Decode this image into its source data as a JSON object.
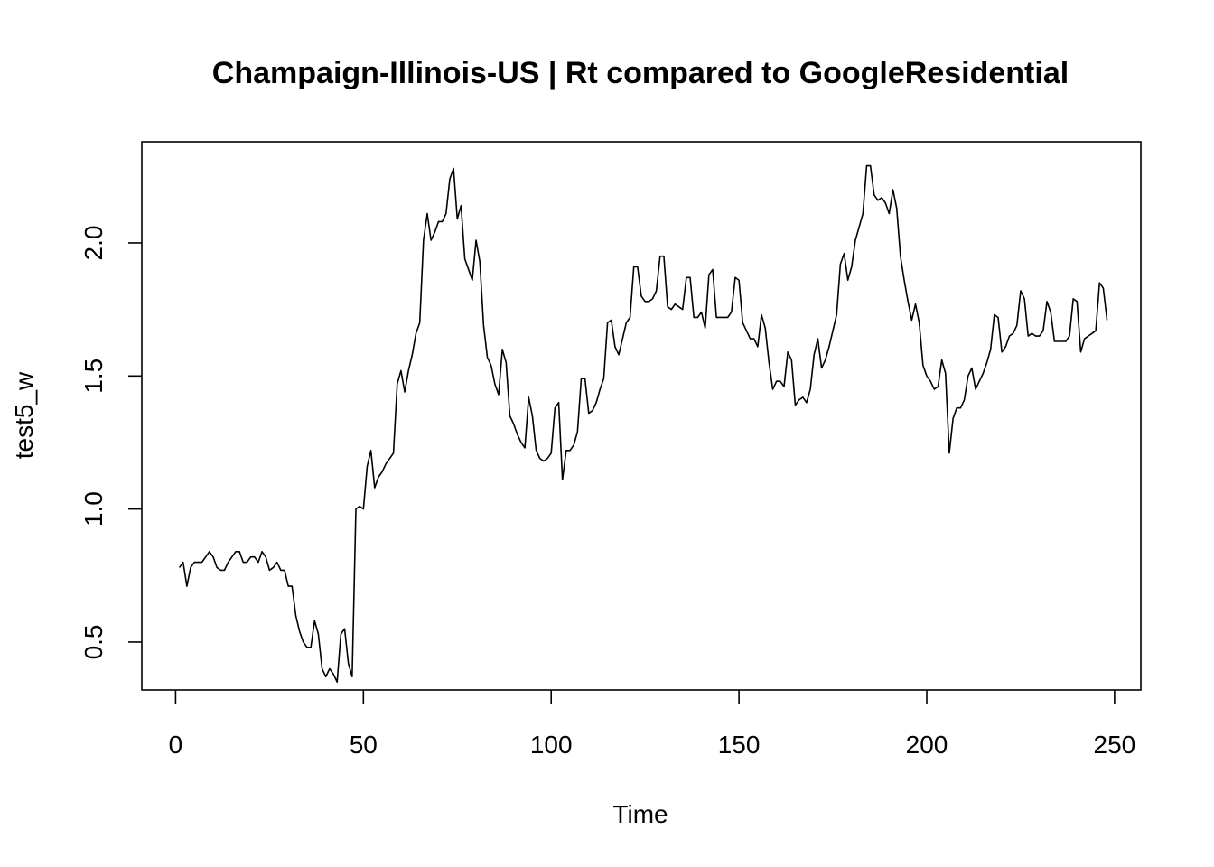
{
  "chart_data": {
    "type": "line",
    "title": "Champaign-Illinois-US | Rt compared to GoogleResidential",
    "xlabel": "Time",
    "ylabel": "test5_w",
    "xlim": [
      -9,
      257
    ],
    "ylim": [
      0.32,
      2.38
    ],
    "xticks": [
      0,
      50,
      100,
      150,
      200,
      250
    ],
    "yticks": [
      0.5,
      1.0,
      1.5,
      2.0
    ],
    "xtick_labels": [
      "0",
      "50",
      "100",
      "150",
      "200",
      "250"
    ],
    "ytick_labels": [
      "0.5",
      "1.0",
      "1.5",
      "2.0"
    ],
    "grid": false,
    "series": [
      {
        "x": [
          1,
          2,
          3,
          4,
          5,
          6,
          7,
          8,
          9,
          10,
          11,
          12,
          13,
          14,
          15,
          16,
          17,
          18,
          19,
          20,
          21,
          22,
          23,
          24,
          25,
          26,
          27,
          28,
          29,
          30,
          31,
          32,
          33,
          34,
          35,
          36,
          37,
          38,
          39,
          40,
          41,
          42,
          43,
          44,
          45,
          46,
          47,
          48,
          49,
          50,
          51,
          52,
          53,
          54,
          55,
          56,
          57,
          58,
          59,
          60,
          61,
          62,
          63,
          64,
          65,
          66,
          67,
          68,
          69,
          70,
          71,
          72,
          73,
          74,
          75,
          76,
          77,
          78,
          79,
          80,
          81,
          82,
          83,
          84,
          85,
          86,
          87,
          88,
          89,
          90,
          91,
          92,
          93,
          94,
          95,
          96,
          97,
          98,
          99,
          100,
          101,
          102,
          103,
          104,
          105,
          106,
          107,
          108,
          109,
          110,
          111,
          112,
          113,
          114,
          115,
          116,
          117,
          118,
          119,
          120,
          121,
          122,
          123,
          124,
          125,
          126,
          127,
          128,
          129,
          130,
          131,
          132,
          133,
          134,
          135,
          136,
          137,
          138,
          139,
          140,
          141,
          142,
          143,
          144,
          145,
          146,
          147,
          148,
          149,
          150,
          151,
          152,
          153,
          154,
          155,
          156,
          157,
          158,
          159,
          160,
          161,
          162,
          163,
          164,
          165,
          166,
          167,
          168,
          169,
          170,
          171,
          172,
          173,
          174,
          175,
          176,
          177,
          178,
          179,
          180,
          181,
          182,
          183,
          184,
          185,
          186,
          187,
          188,
          189,
          190,
          191,
          192,
          193,
          194,
          195,
          196,
          197,
          198,
          199,
          200,
          201,
          202,
          203,
          204,
          205,
          206,
          207,
          208,
          209,
          210,
          211,
          212,
          213,
          214,
          215,
          216,
          217,
          218,
          219,
          220,
          221,
          222,
          223,
          224,
          225,
          226,
          227,
          228,
          229,
          230,
          231,
          232,
          233,
          234,
          235,
          236,
          237,
          238,
          239,
          240,
          241,
          242,
          243,
          244,
          245,
          246,
          247,
          248
        ],
        "values": [
          0.78,
          0.8,
          0.71,
          0.78,
          0.8,
          0.8,
          0.8,
          0.82,
          0.84,
          0.82,
          0.78,
          0.77,
          0.77,
          0.8,
          0.82,
          0.84,
          0.84,
          0.8,
          0.8,
          0.82,
          0.82,
          0.8,
          0.84,
          0.82,
          0.77,
          0.78,
          0.8,
          0.77,
          0.77,
          0.71,
          0.71,
          0.6,
          0.54,
          0.5,
          0.48,
          0.48,
          0.58,
          0.53,
          0.4,
          0.37,
          0.4,
          0.38,
          0.35,
          0.53,
          0.55,
          0.42,
          0.37,
          1.0,
          1.01,
          1.0,
          1.16,
          1.22,
          1.08,
          1.12,
          1.14,
          1.17,
          1.19,
          1.21,
          1.47,
          1.52,
          1.44,
          1.52,
          1.58,
          1.66,
          1.7,
          2.01,
          2.11,
          2.01,
          2.04,
          2.08,
          2.08,
          2.11,
          2.24,
          2.28,
          2.09,
          2.14,
          1.94,
          1.9,
          1.86,
          2.01,
          1.93,
          1.69,
          1.57,
          1.54,
          1.47,
          1.43,
          1.6,
          1.55,
          1.35,
          1.32,
          1.28,
          1.25,
          1.23,
          1.42,
          1.35,
          1.22,
          1.19,
          1.18,
          1.19,
          1.21,
          1.38,
          1.4,
          1.11,
          1.22,
          1.22,
          1.24,
          1.29,
          1.49,
          1.49,
          1.36,
          1.37,
          1.4,
          1.45,
          1.49,
          1.7,
          1.71,
          1.61,
          1.58,
          1.64,
          1.7,
          1.72,
          1.91,
          1.91,
          1.8,
          1.78,
          1.78,
          1.79,
          1.82,
          1.95,
          1.95,
          1.76,
          1.75,
          1.77,
          1.76,
          1.75,
          1.87,
          1.87,
          1.72,
          1.72,
          1.74,
          1.68,
          1.88,
          1.9,
          1.72,
          1.72,
          1.72,
          1.72,
          1.74,
          1.87,
          1.86,
          1.7,
          1.67,
          1.64,
          1.64,
          1.61,
          1.73,
          1.68,
          1.55,
          1.45,
          1.48,
          1.48,
          1.46,
          1.59,
          1.56,
          1.39,
          1.41,
          1.42,
          1.4,
          1.45,
          1.58,
          1.64,
          1.53,
          1.56,
          1.61,
          1.67,
          1.73,
          1.92,
          1.96,
          1.86,
          1.91,
          2.01,
          2.06,
          2.11,
          2.29,
          2.29,
          2.18,
          2.16,
          2.17,
          2.15,
          2.11,
          2.2,
          2.13,
          1.95,
          1.86,
          1.78,
          1.71,
          1.77,
          1.7,
          1.54,
          1.5,
          1.48,
          1.45,
          1.46,
          1.56,
          1.51,
          1.21,
          1.34,
          1.38,
          1.38,
          1.41,
          1.5,
          1.53,
          1.45,
          1.48,
          1.51,
          1.55,
          1.6,
          1.73,
          1.72,
          1.59,
          1.61,
          1.65,
          1.66,
          1.69,
          1.82,
          1.79,
          1.65,
          1.66,
          1.65,
          1.65,
          1.67,
          1.78,
          1.74,
          1.63,
          1.63,
          1.63,
          1.63,
          1.65,
          1.79,
          1.78,
          1.59,
          1.64,
          1.65,
          1.66,
          1.67,
          1.85,
          1.83,
          1.71
        ]
      }
    ]
  }
}
